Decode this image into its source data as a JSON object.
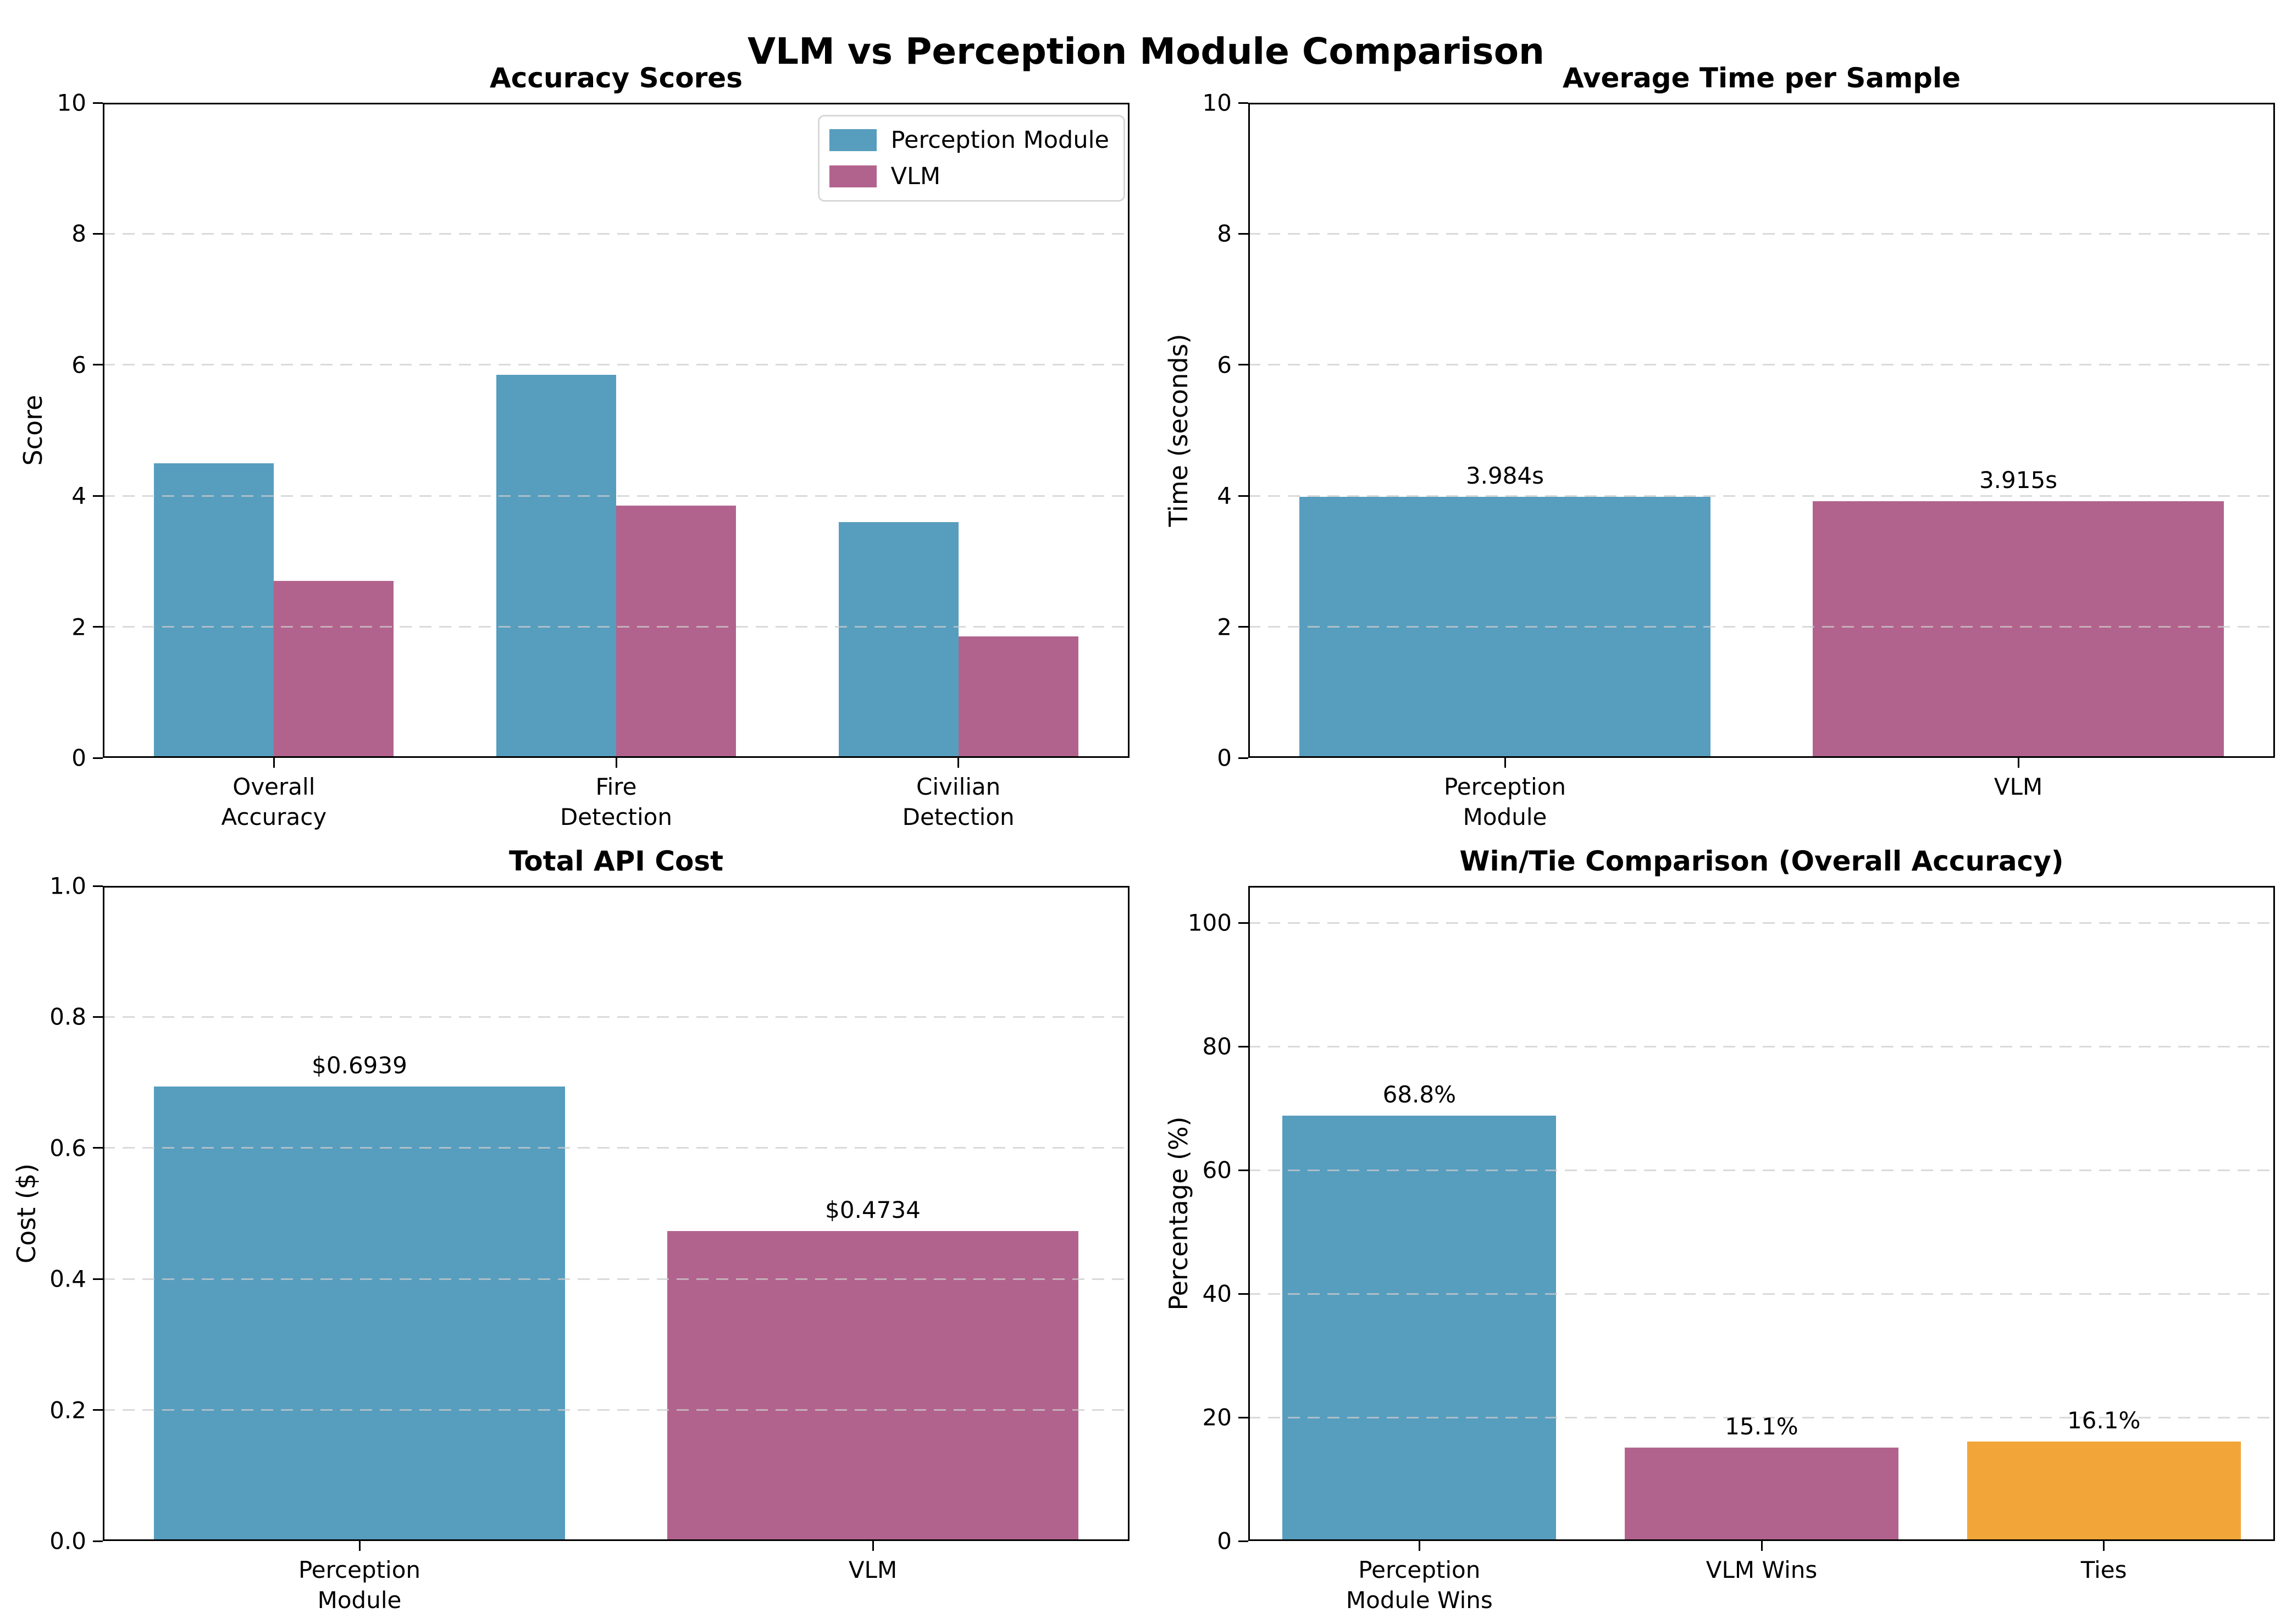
{
  "figure_title": "VLM vs Perception Module Comparison",
  "colors": {
    "perception": "#579DBE",
    "vlm": "#B2638D",
    "tie": "#F2A63A",
    "grid": "#CCCCCC"
  },
  "chart_data": [
    {
      "id": "accuracy",
      "type": "bar",
      "title": "Accuracy Scores",
      "ylabel": "Score",
      "ylim": [
        0,
        10
      ],
      "yticks": [
        0,
        2,
        4,
        6,
        8,
        10
      ],
      "ytick_labels": [
        "0",
        "2",
        "4",
        "6",
        "8",
        "10"
      ],
      "categories": [
        [
          "Overall",
          "Accuracy"
        ],
        [
          "Fire",
          "Detection"
        ],
        [
          "Civilian",
          "Detection"
        ]
      ],
      "grouped": true,
      "bar_width_frac": 0.35,
      "grid": true,
      "legend_position": "upper right",
      "series": [
        {
          "name": "Perception Module",
          "color": "perception",
          "values": [
            4.5,
            5.85,
            3.6
          ]
        },
        {
          "name": "VLM",
          "color": "vlm",
          "values": [
            2.7,
            3.85,
            1.85
          ]
        }
      ]
    },
    {
      "id": "time",
      "type": "bar",
      "title": "Average Time per Sample",
      "ylabel": "Time (seconds)",
      "ylim": [
        0,
        10
      ],
      "yticks": [
        0,
        2,
        4,
        6,
        8,
        10
      ],
      "ytick_labels": [
        "0",
        "2",
        "4",
        "6",
        "8",
        "10"
      ],
      "categories": [
        [
          "Perception",
          "Module"
        ],
        [
          "VLM"
        ]
      ],
      "grouped": false,
      "bar_width_frac": 0.8,
      "grid": true,
      "bars": [
        {
          "value": 3.984,
          "label": "3.984s",
          "color": "perception"
        },
        {
          "value": 3.915,
          "label": "3.915s",
          "color": "vlm"
        }
      ]
    },
    {
      "id": "cost",
      "type": "bar",
      "title": "Total API Cost",
      "ylabel": "Cost ($)",
      "ylim": [
        0,
        1.0
      ],
      "yticks": [
        0,
        0.2,
        0.4,
        0.6,
        0.8,
        1.0
      ],
      "ytick_labels": [
        "0.0",
        "0.2",
        "0.4",
        "0.6",
        "0.8",
        "1.0"
      ],
      "categories": [
        [
          "Perception",
          "Module"
        ],
        [
          "VLM"
        ]
      ],
      "grouped": false,
      "bar_width_frac": 0.8,
      "grid": true,
      "bars": [
        {
          "value": 0.6939,
          "label": "$0.6939",
          "color": "perception"
        },
        {
          "value": 0.4734,
          "label": "$0.4734",
          "color": "vlm"
        }
      ]
    },
    {
      "id": "wintie",
      "type": "bar",
      "title": "Win/Tie Comparison (Overall Accuracy)",
      "ylabel": "Percentage (%)",
      "ylim": [
        0,
        106
      ],
      "yticks": [
        0,
        20,
        40,
        60,
        80,
        100
      ],
      "ytick_labels": [
        "0",
        "20",
        "40",
        "60",
        "80",
        "100"
      ],
      "categories": [
        [
          "Perception",
          "Module Wins"
        ],
        [
          "VLM Wins"
        ],
        [
          "Ties"
        ]
      ],
      "grouped": false,
      "bar_width_frac": 0.8,
      "grid": true,
      "bars": [
        {
          "value": 68.8,
          "label": "68.8%",
          "color": "perception"
        },
        {
          "value": 15.1,
          "label": "15.1%",
          "color": "vlm"
        },
        {
          "value": 16.1,
          "label": "16.1%",
          "color": "tie"
        }
      ]
    }
  ]
}
